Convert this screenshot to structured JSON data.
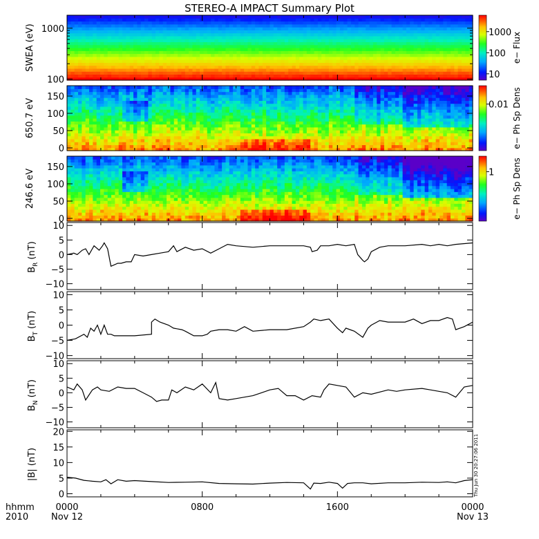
{
  "title": "STEREO-A IMPACT Summary Plot",
  "stamp": "Thu Jun 30 20:27:06 2011",
  "x_axis": {
    "corner_labels": [
      "hhmm",
      "2010"
    ],
    "ticks": [
      {
        "hours": 0,
        "top": "0000",
        "bottom": "Nov 12"
      },
      {
        "hours": 8,
        "top": "0800",
        "bottom": ""
      },
      {
        "hours": 16,
        "top": "1600",
        "bottom": ""
      },
      {
        "hours": 24,
        "top": "0000",
        "bottom": "Nov 13"
      }
    ],
    "range_hours": [
      0,
      24
    ]
  },
  "chart_data": [
    {
      "type": "heatmap",
      "ylabel": "SWEA (eV)",
      "yscale": "log",
      "ylim": [
        95,
        1800
      ],
      "yticks": [
        {
          "v": 100,
          "label": "100"
        },
        {
          "v": 1000,
          "label": "1000"
        }
      ],
      "colorbar": {
        "label": "e− Flux",
        "scale": "log",
        "ticks": [
          {
            "v": 10,
            "label": "10"
          },
          {
            "v": 100,
            "label": "100"
          },
          {
            "v": 1000,
            "label": "1000"
          }
        ],
        "range": [
          5,
          6000
        ]
      }
    },
    {
      "type": "heatmap",
      "ylabel": "650.7 eV",
      "ylim": [
        -8,
        180
      ],
      "yticks": [
        {
          "v": 0,
          "label": "0"
        },
        {
          "v": 50,
          "label": "50"
        },
        {
          "v": 100,
          "label": "100"
        },
        {
          "v": 150,
          "label": "150"
        }
      ],
      "colorbar": {
        "label": "e− Ph Sp Dens",
        "scale": "log",
        "ticks": [
          {
            "v": 0.01,
            "label": "0.01"
          }
        ],
        "range": [
          0.0003,
          0.04
        ]
      }
    },
    {
      "type": "heatmap",
      "ylabel": "246.6 eV",
      "ylim": [
        -8,
        180
      ],
      "yticks": [
        {
          "v": 0,
          "label": "0"
        },
        {
          "v": 50,
          "label": "50"
        },
        {
          "v": 100,
          "label": "100"
        },
        {
          "v": 150,
          "label": "150"
        }
      ],
      "colorbar": {
        "label": "e− Ph Sp Dens",
        "scale": "log",
        "ticks": [
          {
            "v": 1,
            "label": "1"
          }
        ],
        "range": [
          0.03,
          3
        ]
      }
    },
    {
      "type": "line",
      "ylabel": "B",
      "ylabel_sub": "R",
      "ylabel_unit": "(nT)",
      "ylim": [
        -12,
        11
      ],
      "yticks": [
        {
          "v": -10,
          "label": "−10"
        },
        {
          "v": -5,
          "label": "−5"
        },
        {
          "v": 0,
          "label": "0"
        },
        {
          "v": 5,
          "label": "5"
        },
        {
          "v": 10,
          "label": "10"
        }
      ],
      "x": [
        0,
        0.4,
        0.6,
        0.9,
        1.1,
        1.3,
        1.6,
        1.9,
        2.1,
        2.2,
        2.4,
        2.6,
        2.8,
        3.0,
        3.2,
        3.5,
        3.8,
        4.0,
        4.5,
        5.0,
        5.5,
        6.0,
        6.3,
        6.5,
        7.0,
        7.5,
        8.0,
        8.5,
        9.0,
        9.5,
        10.0,
        11.0,
        12.0,
        13.0,
        14.0,
        14.4,
        14.5,
        14.8,
        15.0,
        15.5,
        16.0,
        16.5,
        17.0,
        17.2,
        17.5,
        17.6,
        17.8,
        18.0,
        18.5,
        19.0,
        20.0,
        21.0,
        21.5,
        22.0,
        22.5,
        23.0,
        24.0
      ],
      "y": [
        0,
        0.5,
        0,
        1.5,
        2,
        0,
        3,
        1.5,
        3,
        4,
        2,
        -4,
        -3.5,
        -3,
        -3,
        -2.5,
        -2.5,
        0,
        -0.5,
        0,
        0.5,
        1,
        3,
        1,
        2.5,
        1.5,
        2,
        0.5,
        2,
        3.5,
        3,
        2.5,
        3,
        3,
        3,
        2.5,
        1,
        1.5,
        3,
        3,
        3.5,
        3,
        3.5,
        0,
        -2,
        -2.5,
        -1.5,
        1,
        2.5,
        3,
        3,
        3.5,
        3,
        3.5,
        3,
        3.5,
        4
      ]
    },
    {
      "type": "line",
      "ylabel": "B",
      "ylabel_sub": "T",
      "ylabel_unit": "(nT)",
      "ylim": [
        -11,
        11
      ],
      "yticks": [
        {
          "v": -10,
          "label": "−10"
        },
        {
          "v": -5,
          "label": "−5"
        },
        {
          "v": 0,
          "label": "0"
        },
        {
          "v": 5,
          "label": "5"
        },
        {
          "v": 10,
          "label": "10"
        }
      ],
      "x": [
        0,
        0.5,
        1.0,
        1.2,
        1.4,
        1.6,
        1.8,
        2.0,
        2.2,
        2.4,
        2.6,
        2.8,
        3.0,
        3.5,
        4.0,
        5.0,
        5.0,
        5.2,
        5.5,
        6.0,
        6.3,
        6.8,
        7.0,
        7.5,
        8.0,
        8.3,
        8.5,
        9.0,
        9.5,
        10.0,
        10.5,
        11.0,
        12.0,
        13.0,
        14.0,
        14.4,
        14.6,
        15.0,
        15.5,
        16.0,
        16.3,
        16.5,
        17.0,
        17.5,
        17.8,
        18.0,
        18.5,
        19.0,
        20.0,
        20.5,
        21.0,
        21.5,
        22.0,
        22.5,
        22.8,
        23.0,
        23.5,
        24.0
      ],
      "y": [
        -5,
        -4.5,
        -3,
        -4,
        -1,
        -2,
        0,
        -3,
        0,
        -3,
        -3,
        -3.5,
        -3.5,
        -3.5,
        -3.5,
        -3,
        1,
        2,
        1,
        0,
        -1,
        -1.5,
        -2,
        -3.5,
        -3.5,
        -3,
        -2,
        -1.5,
        -1.5,
        -2,
        -0.5,
        -2,
        -1.5,
        -1.5,
        -0.5,
        1,
        2,
        1.5,
        2,
        -1,
        -2.5,
        -1,
        -2,
        -4,
        -1,
        0,
        1.5,
        1,
        1,
        2,
        0.5,
        1.5,
        1.5,
        2.5,
        2,
        -1.5,
        -0.5,
        1
      ]
    },
    {
      "type": "line",
      "ylabel": "B",
      "ylabel_sub": "N",
      "ylabel_unit": "(nT)",
      "ylim": [
        -12,
        11
      ],
      "yticks": [
        {
          "v": -10,
          "label": "−10"
        },
        {
          "v": -5,
          "label": "−5"
        },
        {
          "v": 0,
          "label": "0"
        },
        {
          "v": 5,
          "label": "5"
        },
        {
          "v": 10,
          "label": "10"
        }
      ],
      "x": [
        0,
        0.4,
        0.6,
        0.9,
        1.1,
        1.5,
        1.8,
        2.0,
        2.5,
        3.0,
        3.5,
        4.0,
        4.5,
        5.0,
        5.3,
        5.6,
        6.0,
        6.2,
        6.5,
        7.0,
        7.5,
        8.0,
        8.5,
        8.8,
        9.0,
        9.5,
        10.0,
        10.5,
        11.0,
        11.5,
        12.0,
        12.5,
        13.0,
        13.5,
        14.0,
        14.5,
        15.0,
        15.2,
        15.5,
        16.0,
        16.5,
        17.0,
        17.5,
        18.0,
        19.0,
        19.5,
        20.0,
        21.0,
        21.5,
        22.0,
        22.5,
        23.0,
        23.5,
        24.0
      ],
      "y": [
        2,
        1,
        3,
        1,
        -2.5,
        1,
        2,
        1,
        0.5,
        2,
        1.5,
        1.5,
        0,
        -1.5,
        -3,
        -2.5,
        -2.5,
        1,
        0,
        2,
        1,
        3,
        0,
        3.5,
        -2,
        -2.5,
        -2,
        -1.5,
        -1,
        0,
        1,
        1.5,
        -1,
        -1,
        -2.5,
        -1,
        -1.5,
        1,
        3,
        2.5,
        2,
        -1.5,
        0,
        -0.5,
        1,
        0.5,
        1,
        1.5,
        1,
        0.5,
        0,
        -1.5,
        2,
        2.5
      ]
    },
    {
      "type": "line",
      "ylabel": "|B| (nT)",
      "ylim": [
        -1,
        20.5
      ],
      "yticks": [
        {
          "v": 0,
          "label": "0"
        },
        {
          "v": 5,
          "label": "5"
        },
        {
          "v": 10,
          "label": "10"
        },
        {
          "v": 15,
          "label": "15"
        },
        {
          "v": 20,
          "label": "20"
        }
      ],
      "x": [
        0,
        0.5,
        1.0,
        1.5,
        2.0,
        2.3,
        2.6,
        3.0,
        3.5,
        4.0,
        5.0,
        6.0,
        7.0,
        8.0,
        9.0,
        10.0,
        11.0,
        12.0,
        13.0,
        14.0,
        14.4,
        14.6,
        15.0,
        15.5,
        16.0,
        16.3,
        16.6,
        17.0,
        17.5,
        18.0,
        19.0,
        20.0,
        21.0,
        22.0,
        22.5,
        23.0,
        23.5,
        24.0
      ],
      "y": [
        5.3,
        5,
        4.3,
        4,
        3.8,
        4.5,
        3.2,
        4.5,
        4,
        4.2,
        3.9,
        3.6,
        3.7,
        3.8,
        3.3,
        3.2,
        3.1,
        3.4,
        3.6,
        3.5,
        1.5,
        3.4,
        3.3,
        3.7,
        3.3,
        1.8,
        3.3,
        3.5,
        3.5,
        3.2,
        3.5,
        3.5,
        3.7,
        3.6,
        3.8,
        3.5,
        4.2,
        4.5
      ]
    }
  ]
}
